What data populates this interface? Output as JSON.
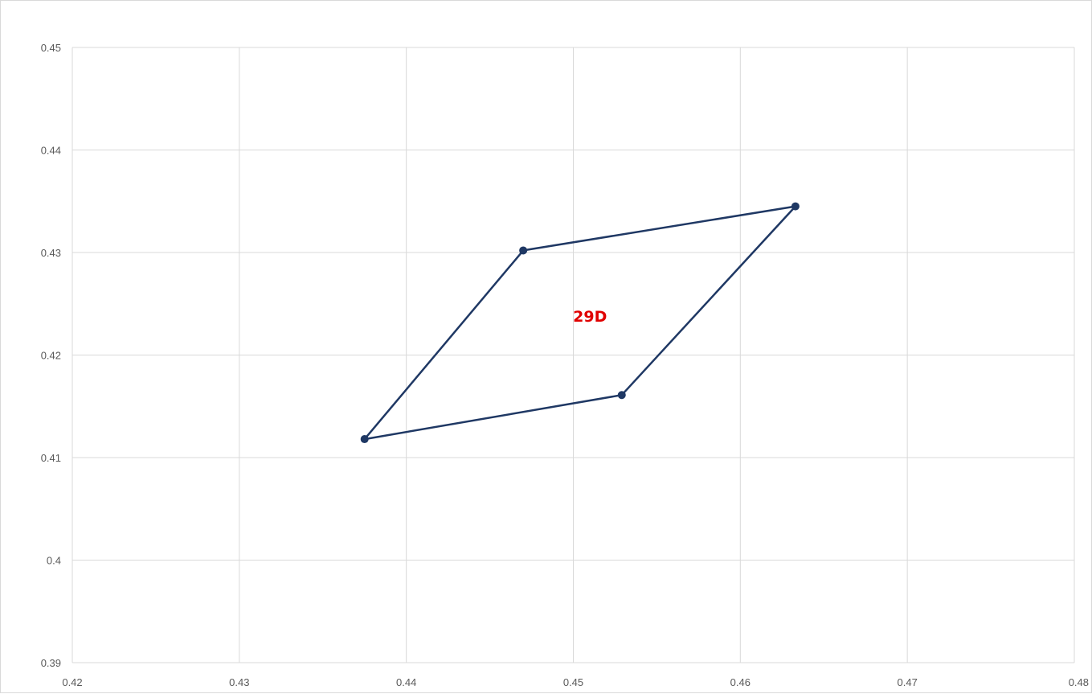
{
  "chart_data": {
    "type": "scatter",
    "title": "",
    "xlabel": "",
    "ylabel": "",
    "xlim": [
      0.42,
      0.48
    ],
    "ylim": [
      0.39,
      0.45
    ],
    "x_ticks": [
      "0.42",
      "0.43",
      "0.44",
      "0.45",
      "0.46",
      "0.47",
      "0.48"
    ],
    "y_ticks": [
      "0.39",
      "0.4",
      "0.41",
      "0.42",
      "0.43",
      "0.44",
      "0.45"
    ],
    "grid": true,
    "series": [
      {
        "color": "#1f3864",
        "closed": true,
        "points": [
          {
            "x": 0.4375,
            "y": 0.4118
          },
          {
            "x": 0.4529,
            "y": 0.4161
          },
          {
            "x": 0.4633,
            "y": 0.4345
          },
          {
            "x": 0.447,
            "y": 0.4302
          },
          {
            "x": 0.4375,
            "y": 0.4118
          }
        ]
      }
    ],
    "annotations": [
      {
        "text": "29D",
        "x": 0.451,
        "y": 0.4238,
        "color": "#e00000"
      }
    ]
  }
}
